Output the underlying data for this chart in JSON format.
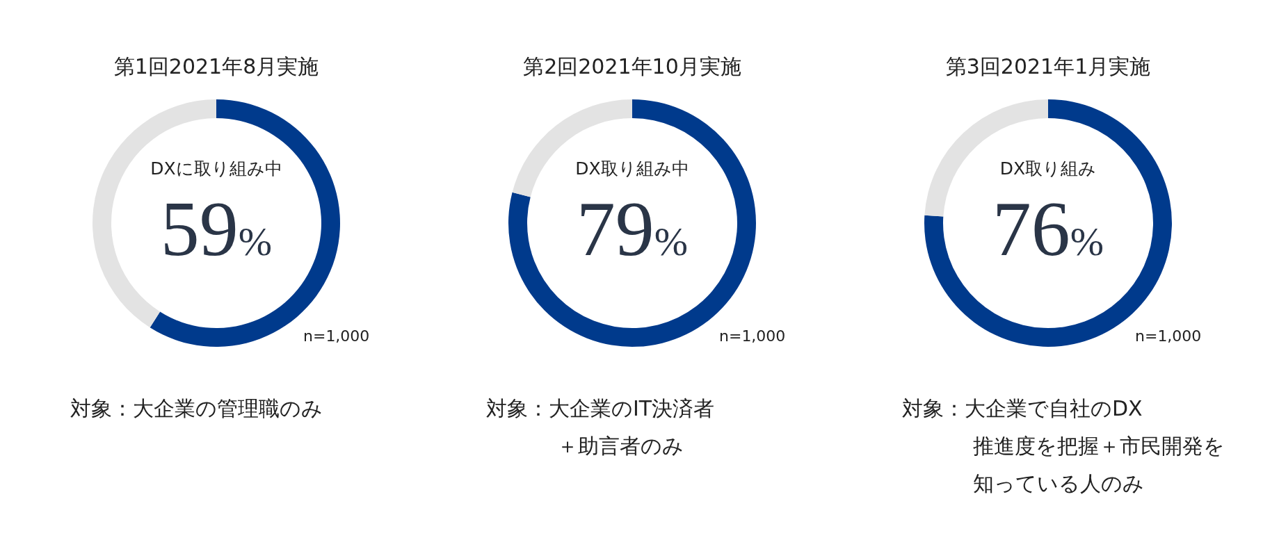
{
  "chart_data": [
    {
      "type": "donut",
      "title": "第1回2021年8月実施",
      "categories": [
        "DXに取り組み中",
        null
      ],
      "values": [
        59,
        41
      ],
      "colors": [
        "#003a8c",
        "#e3e3e3"
      ],
      "value_labels": [
        "59%",
        null
      ],
      "annotations": [
        "n=1,000",
        "対象：大企業の管理職のみ"
      ]
    },
    {
      "type": "donut",
      "title": "第2回2021年10月実施",
      "categories": [
        "DX取り組み中",
        null
      ],
      "values": [
        79,
        21
      ],
      "colors": [
        "#003a8c",
        "#e3e3e3"
      ],
      "value_labels": [
        "79%",
        null
      ],
      "annotations": [
        "n=1,000",
        "対象：大企業のIT決済者",
        "＋助言者のみ"
      ]
    },
    {
      "type": "donut",
      "title": "第3回2021年1月実施",
      "categories": [
        "DX取り組み",
        null
      ],
      "values": [
        76,
        24
      ],
      "colors": [
        "#003a8c",
        "#e3e3e3"
      ],
      "value_labels": [
        "76%",
        null
      ],
      "annotations": [
        "n=1,000",
        "対象：大企業で自社のDX",
        "推進度を把握＋市民開発を",
        "知っている人のみ"
      ]
    }
  ]
}
